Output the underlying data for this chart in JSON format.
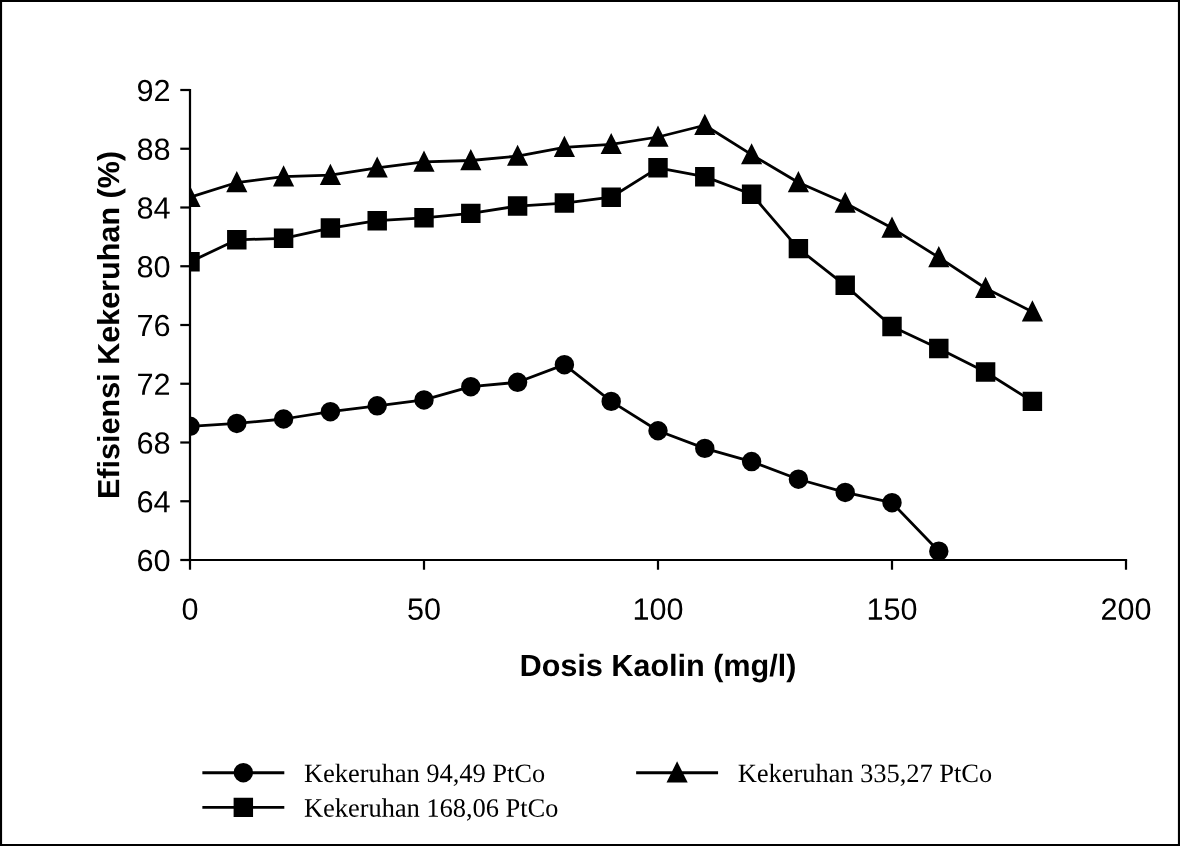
{
  "chart_data": {
    "type": "line",
    "xlabel": "Dosis Kaolin (mg/l)",
    "ylabel": "Efisiensi Kekeruhan (%)",
    "xlim": [
      0,
      200
    ],
    "xticks": [
      0,
      50,
      100,
      150,
      200
    ],
    "ylim": [
      60,
      92
    ],
    "yticks": [
      60,
      64,
      68,
      72,
      76,
      80,
      84,
      88,
      92
    ],
    "grid": false,
    "legend": "bottom",
    "line_style": "solid",
    "series": [
      {
        "name": "Kekeruhan 94,49 PtCo",
        "color": "#000000",
        "marker": "circle",
        "x": [
          0,
          10,
          20,
          30,
          40,
          50,
          60,
          70,
          80,
          90,
          100,
          110,
          120,
          130,
          140,
          150,
          160
        ],
        "values": [
          69.1,
          69.3,
          69.6,
          70.1,
          70.5,
          70.9,
          71.8,
          72.1,
          73.3,
          70.8,
          68.8,
          67.6,
          66.7,
          65.5,
          64.6,
          63.9,
          60.6
        ]
      },
      {
        "name": "Kekeruhan 168,06 PtCo",
        "color": "#000000",
        "marker": "square",
        "x": [
          0,
          10,
          20,
          30,
          40,
          50,
          60,
          70,
          80,
          90,
          100,
          110,
          120,
          130,
          140,
          150,
          160,
          170,
          180
        ],
        "values": [
          80.3,
          81.8,
          81.9,
          82.6,
          83.1,
          83.3,
          83.6,
          84.1,
          84.3,
          84.7,
          86.7,
          86.1,
          84.9,
          81.2,
          78.7,
          75.9,
          74.4,
          72.8,
          70.8
        ]
      },
      {
        "name": "Kekeruhan 335,27 PtCo",
        "color": "#000000",
        "marker": "triangle",
        "x": [
          0,
          10,
          20,
          30,
          40,
          50,
          60,
          70,
          80,
          90,
          100,
          110,
          120,
          130,
          140,
          150,
          160,
          170,
          180
        ],
        "values": [
          84.7,
          85.7,
          86.1,
          86.2,
          86.7,
          87.1,
          87.2,
          87.5,
          88.1,
          88.3,
          88.8,
          89.6,
          87.6,
          85.7,
          84.3,
          82.6,
          80.6,
          78.5,
          76.9
        ]
      }
    ]
  }
}
